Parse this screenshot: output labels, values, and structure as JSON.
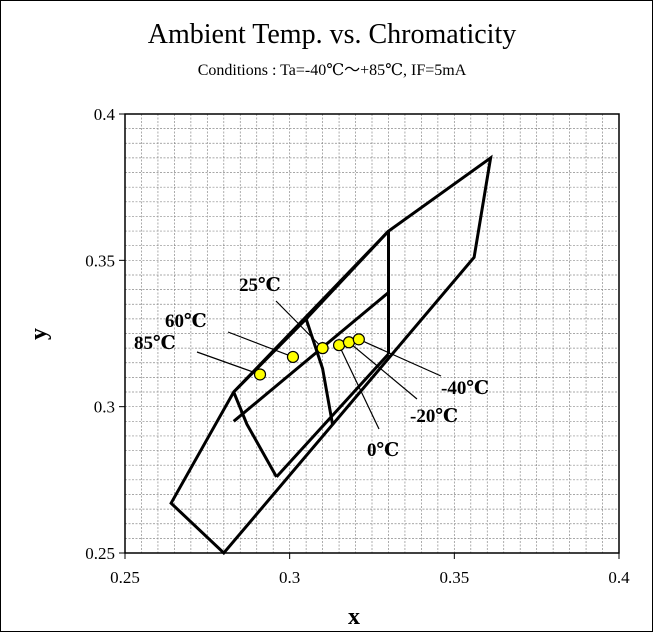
{
  "chart_data": {
    "type": "scatter",
    "title": "Ambient Temp. vs. Chromaticity",
    "subtitle": "Conditions : Ta=-40℃～+85℃,  IF=5mA",
    "xlabel": "x",
    "ylabel": "y",
    "xlim": [
      0.25,
      0.4
    ],
    "ylim": [
      0.25,
      0.4
    ],
    "x_ticks": [
      0.25,
      0.3,
      0.35,
      0.4
    ],
    "y_ticks": [
      0.25,
      0.3,
      0.35,
      0.4
    ],
    "x_tick_labels": [
      "0.25",
      "0.3",
      "0.35",
      "0.4"
    ],
    "y_tick_labels": [
      "0.25",
      "0.3",
      "0.35",
      "0.4"
    ],
    "grid": true,
    "series": [
      {
        "name": "",
        "color": "#ffff00",
        "points": [
          {
            "label": "85℃",
            "x": 0.291,
            "y": 0.311
          },
          {
            "label": "60℃",
            "x": 0.301,
            "y": 0.317
          },
          {
            "label": "25℃",
            "x": 0.31,
            "y": 0.32
          },
          {
            "label": "0℃",
            "x": 0.315,
            "y": 0.321
          },
          {
            "label": "-20℃",
            "x": 0.318,
            "y": 0.322
          },
          {
            "label": "-40℃",
            "x": 0.321,
            "y": 0.323
          }
        ]
      }
    ],
    "bin_regions": [
      [
        [
          0.264,
          0.267
        ],
        [
          0.283,
          0.305
        ],
        [
          0.305,
          0.33
        ],
        [
          0.33,
          0.36
        ],
        [
          0.361,
          0.385
        ],
        [
          0.356,
          0.351
        ],
        [
          0.28,
          0.25
        ]
      ],
      [
        [
          0.283,
          0.305
        ],
        [
          0.33,
          0.36
        ]
      ],
      [
        [
          0.33,
          0.36
        ],
        [
          0.33,
          0.318
        ]
      ],
      [
        [
          0.283,
          0.295
        ],
        [
          0.33,
          0.339
        ]
      ],
      [
        [
          0.283,
          0.305
        ],
        [
          0.287,
          0.294
        ],
        [
          0.296,
          0.276
        ]
      ],
      [
        [
          0.305,
          0.33
        ],
        [
          0.31,
          0.313
        ],
        [
          0.313,
          0.294
        ]
      ],
      [
        [
          0.33,
          0.318
        ],
        [
          0.296,
          0.276
        ]
      ]
    ]
  }
}
